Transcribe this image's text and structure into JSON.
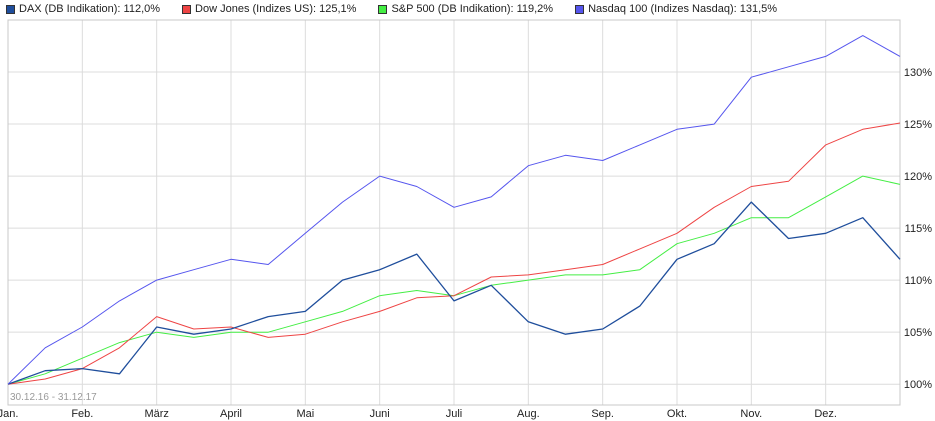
{
  "colors": {
    "dax": "#1f4e9c",
    "dow": "#ee4444",
    "sp500": "#44ee44",
    "nasdaq": "#5555ee"
  },
  "legend": [
    {
      "label": "DAX (DB Indikation): 112,0%",
      "color_key": "dax"
    },
    {
      "label": "Dow Jones (Indizes US): 125,1%",
      "color_key": "dow"
    },
    {
      "label": "S&P 500 (DB Indikation): 119,2%",
      "color_key": "sp500"
    },
    {
      "label": "Nasdaq 100 (Indizes Nasdaq): 131,5%",
      "color_key": "nasdaq"
    }
  ],
  "chart_data": {
    "type": "line",
    "date_range": "30.12.16 - 31.12.17",
    "x": [
      "Jan.",
      "Jan.",
      "Feb.",
      "Feb.",
      "März",
      "März",
      "April",
      "April",
      "Mai",
      "Mai",
      "Juni",
      "Juni",
      "Juli",
      "Juli",
      "Aug.",
      "Aug.",
      "Sep.",
      "Sep.",
      "Okt.",
      "Okt.",
      "Nov.",
      "Nov.",
      "Dez.",
      "Dez.",
      "Dez."
    ],
    "x_ticks": [
      "Jan.",
      "Feb.",
      "März",
      "April",
      "Mai",
      "Juni",
      "Juli",
      "Aug.",
      "Sep.",
      "Okt.",
      "Nov.",
      "Dez."
    ],
    "y_ticks": [
      "100%",
      "105%",
      "110%",
      "115%",
      "120%",
      "125%",
      "130%"
    ],
    "ylim": [
      98,
      135
    ],
    "y_unit": "%",
    "grid": true,
    "series": [
      {
        "name": "DAX (DB Indikation)",
        "color_key": "dax",
        "values": [
          100.0,
          101.3,
          101.5,
          101.0,
          105.5,
          104.8,
          105.3,
          106.5,
          107.0,
          110.0,
          111.0,
          112.5,
          108.0,
          109.5,
          106.0,
          104.8,
          105.3,
          107.5,
          112.0,
          113.5,
          117.5,
          114.0,
          114.5,
          116.0,
          112.0
        ]
      },
      {
        "name": "Dow Jones (Indizes US)",
        "color_key": "dow",
        "values": [
          100.0,
          100.5,
          101.5,
          103.5,
          106.5,
          105.3,
          105.5,
          104.5,
          104.8,
          106.0,
          107.0,
          108.3,
          108.5,
          110.3,
          110.5,
          111.0,
          111.5,
          113.0,
          114.5,
          117.0,
          119.0,
          119.5,
          123.0,
          124.5,
          125.1
        ]
      },
      {
        "name": "S&P 500 (DB Indikation)",
        "color_key": "sp500",
        "values": [
          100.0,
          101.0,
          102.5,
          104.0,
          105.0,
          104.5,
          105.0,
          105.0,
          106.0,
          107.0,
          108.5,
          109.0,
          108.5,
          109.5,
          110.0,
          110.5,
          110.5,
          111.0,
          113.5,
          114.5,
          116.0,
          116.0,
          118.0,
          120.0,
          119.2
        ]
      },
      {
        "name": "Nasdaq 100 (Indizes Nasdaq)",
        "color_key": "nasdaq",
        "values": [
          100.0,
          103.5,
          105.5,
          108.0,
          110.0,
          111.0,
          112.0,
          111.5,
          114.5,
          117.5,
          120.0,
          119.0,
          117.0,
          118.0,
          121.0,
          122.0,
          121.5,
          123.0,
          124.5,
          125.0,
          129.5,
          130.5,
          131.5,
          133.5,
          131.5
        ]
      }
    ]
  }
}
